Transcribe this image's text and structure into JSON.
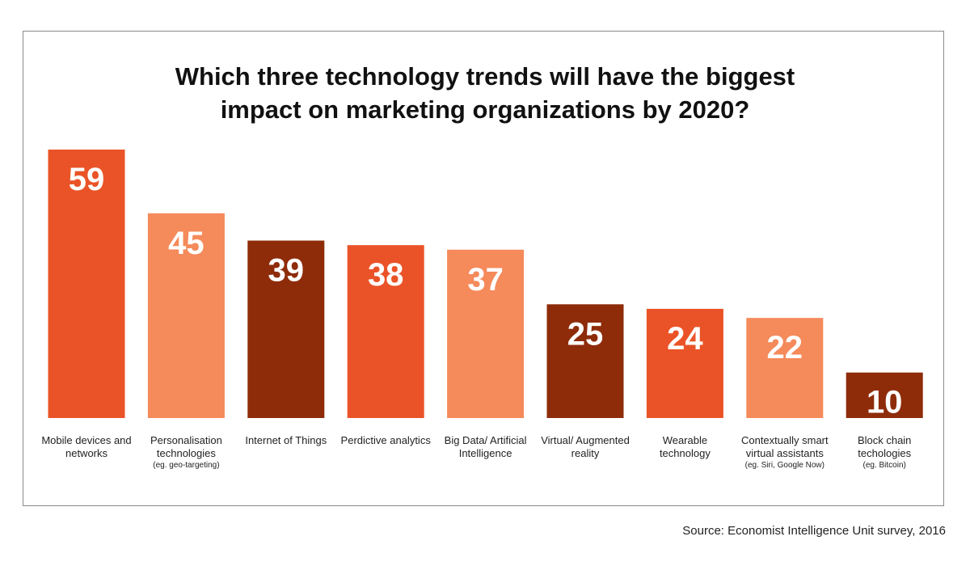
{
  "chart_data": {
    "type": "bar",
    "title": "Which three technology trends will have the biggest impact on marketing organizations by 2020?",
    "categories": [
      "Mobile devices and networks",
      "Personalisation technologies",
      "Internet of Things",
      "Perdictive analytics",
      "Big Data/ Artificial Intelligence",
      "Virtual/ Augmented reality",
      "Wearable technology",
      "Contextually smart virtual assistants",
      "Block chain techologies"
    ],
    "category_notes": [
      null,
      "(eg. geo-targeting)",
      null,
      null,
      null,
      null,
      null,
      "(eg. Siri, Google Now)",
      "(eg. Bitcoin)"
    ],
    "values": [
      59,
      45,
      39,
      38,
      37,
      25,
      24,
      22,
      10
    ],
    "colors": [
      "#ea5327",
      "#f58a5b",
      "#8e2c0a",
      "#ea5327",
      "#f58a5b",
      "#8e2c0a",
      "#ea5327",
      "#f58a5b",
      "#8e2c0a"
    ],
    "source": "Source: Economist Intelligence Unit survey, 2016"
  }
}
